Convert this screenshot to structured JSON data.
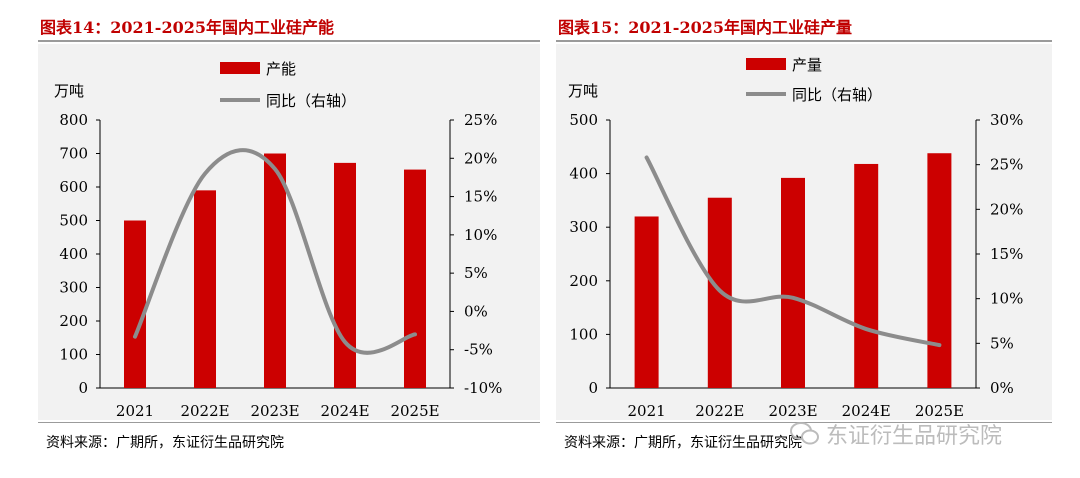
{
  "chart_data": [
    {
      "type": "bar",
      "title": "图表14：2021-2025年国内工业硅产能",
      "categories": [
        "2021",
        "2022E",
        "2023E",
        "2024E",
        "2025E"
      ],
      "series": [
        {
          "name": "产能",
          "kind": "bar",
          "axis": "left",
          "values": [
            500,
            590,
            700,
            672,
            652
          ],
          "color": "#cc0000"
        },
        {
          "name": "同比（右轴）",
          "kind": "line",
          "axis": "right",
          "values": [
            -3.3,
            18.0,
            18.6,
            -4.0,
            -3.0
          ],
          "color": "#8c8c8c"
        }
      ],
      "left_unit": "万吨",
      "ylim_left": [
        0,
        800
      ],
      "yticks_left": [
        "0",
        "100",
        "200",
        "300",
        "400",
        "500",
        "600",
        "700",
        "800"
      ],
      "ylim_right": [
        -10,
        25
      ],
      "yticks_right": [
        "-10%",
        "-5%",
        "0%",
        "5%",
        "10%",
        "15%",
        "20%",
        "25%"
      ],
      "source": "资料来源：广期所，东证衍生品研究院"
    },
    {
      "type": "bar",
      "title": "图表15：2021-2025年国内工业硅产量",
      "categories": [
        "2021",
        "2022E",
        "2023E",
        "2024E",
        "2025E"
      ],
      "series": [
        {
          "name": "产量",
          "kind": "bar",
          "axis": "left",
          "values": [
            320,
            355,
            392,
            418,
            438
          ],
          "color": "#cc0000"
        },
        {
          "name": "同比（右轴）",
          "kind": "line",
          "axis": "right",
          "values": [
            25.8,
            10.9,
            10.1,
            6.6,
            4.8
          ],
          "color": "#8c8c8c"
        }
      ],
      "left_unit": "万吨",
      "ylim_left": [
        0,
        500
      ],
      "yticks_left": [
        "0",
        "100",
        "200",
        "300",
        "400",
        "500"
      ],
      "ylim_right": [
        0,
        30
      ],
      "yticks_right": [
        "0%",
        "5%",
        "10%",
        "15%",
        "20%",
        "25%",
        "30%"
      ],
      "source": "资料来源：广期所，东证衍生品研究院"
    }
  ],
  "watermark": "东证衍生品研究院"
}
